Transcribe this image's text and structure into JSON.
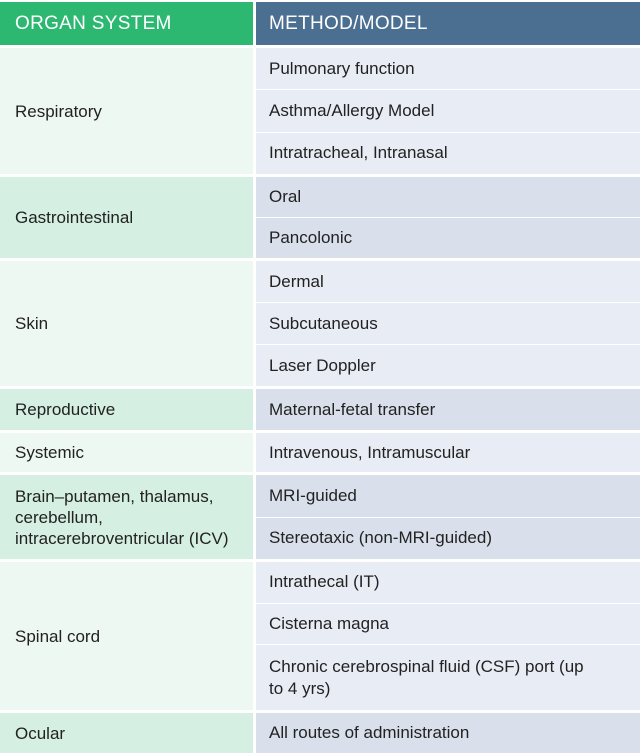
{
  "header": {
    "organ_system": "ORGAN SYSTEM",
    "method_model": "METHOD/MODEL"
  },
  "colors": {
    "header_left": "#2db872",
    "header_right": "#4a6f91"
  },
  "rows": [
    {
      "organ": "Respiratory",
      "methods": [
        "Pulmonary function",
        "Asthma/Allergy Model",
        "Intratracheal, Intranasal"
      ]
    },
    {
      "organ": "Gastrointestinal",
      "methods": [
        "Oral",
        "Pancolonic"
      ]
    },
    {
      "organ": "Skin",
      "methods": [
        "Dermal",
        "Subcutaneous",
        "Laser Doppler"
      ]
    },
    {
      "organ": "Reproductive",
      "methods": [
        "Maternal-fetal transfer"
      ]
    },
    {
      "organ": "Systemic",
      "methods": [
        "Intravenous, Intramuscular"
      ]
    },
    {
      "organ": "Brain–putamen, thalamus, cerebellum, intracerebroventricular (ICV)",
      "methods": [
        "MRI-guided",
        "Stereotaxic (non-MRI-guided)"
      ]
    },
    {
      "organ": "Spinal cord",
      "methods": [
        "Intrathecal (IT)",
        "Cisterna magna",
        "Chronic cerebrospinal fluid (CSF) port (up to 4 yrs)"
      ]
    },
    {
      "organ": "Ocular",
      "methods": [
        "All routes of administration"
      ]
    }
  ]
}
